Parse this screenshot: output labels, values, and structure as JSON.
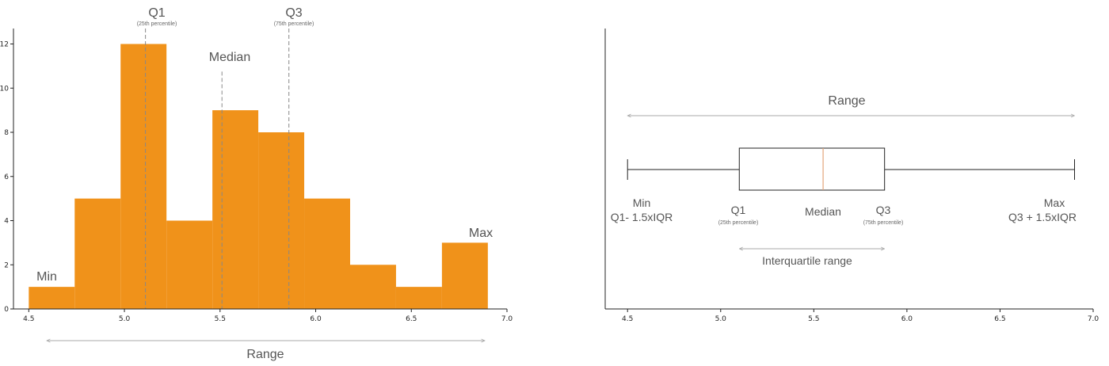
{
  "chart_data": [
    {
      "type": "bar",
      "bin_edges": [
        4.5,
        4.74,
        4.98,
        5.22,
        5.46,
        5.7,
        5.94,
        6.18,
        6.42,
        6.66,
        6.9
      ],
      "values": [
        1,
        5,
        12,
        4,
        9,
        8,
        5,
        2,
        1,
        3
      ],
      "bar_color": "#F0921A",
      "xlim": [
        4.42,
        7.0
      ],
      "ylim": [
        0,
        12.7
      ],
      "xticks": [
        "4.5",
        "5.0",
        "5.5",
        "6.0",
        "6.5",
        "7.0"
      ],
      "yticks": [
        "0",
        "2",
        "4",
        "6",
        "8",
        "10",
        "12"
      ],
      "markers": {
        "q1": 5.11,
        "median": 5.51,
        "q3": 5.86,
        "median_top": 10.75
      },
      "annotations": {
        "q1": "Q1",
        "q1_sub": "(25th percentile)",
        "q3": "Q3",
        "q3_sub": "(75th percentile)",
        "median": "Median",
        "min": "Min",
        "max": "Max",
        "range": "Range"
      }
    },
    {
      "type": "box",
      "min": 4.5,
      "q1": 5.1,
      "median": 5.55,
      "q3": 5.88,
      "max": 6.9,
      "xlim": [
        4.38,
        7.0
      ],
      "xticks": [
        "4.5",
        "5.0",
        "5.5",
        "6.0",
        "6.5",
        "7.0"
      ],
      "median_color": "#E4A57A",
      "annotations": {
        "range": "Range",
        "min": "Min",
        "min_sub": "Q1- 1.5xIQR",
        "q1": "Q1",
        "q1_sub": "(25th percentile)",
        "median": "Median",
        "q3": "Q3",
        "q3_sub": "(75th percentile)",
        "max": "Max",
        "max_sub": "Q3 + 1.5xIQR",
        "iqr": "Interquartile range"
      }
    }
  ]
}
